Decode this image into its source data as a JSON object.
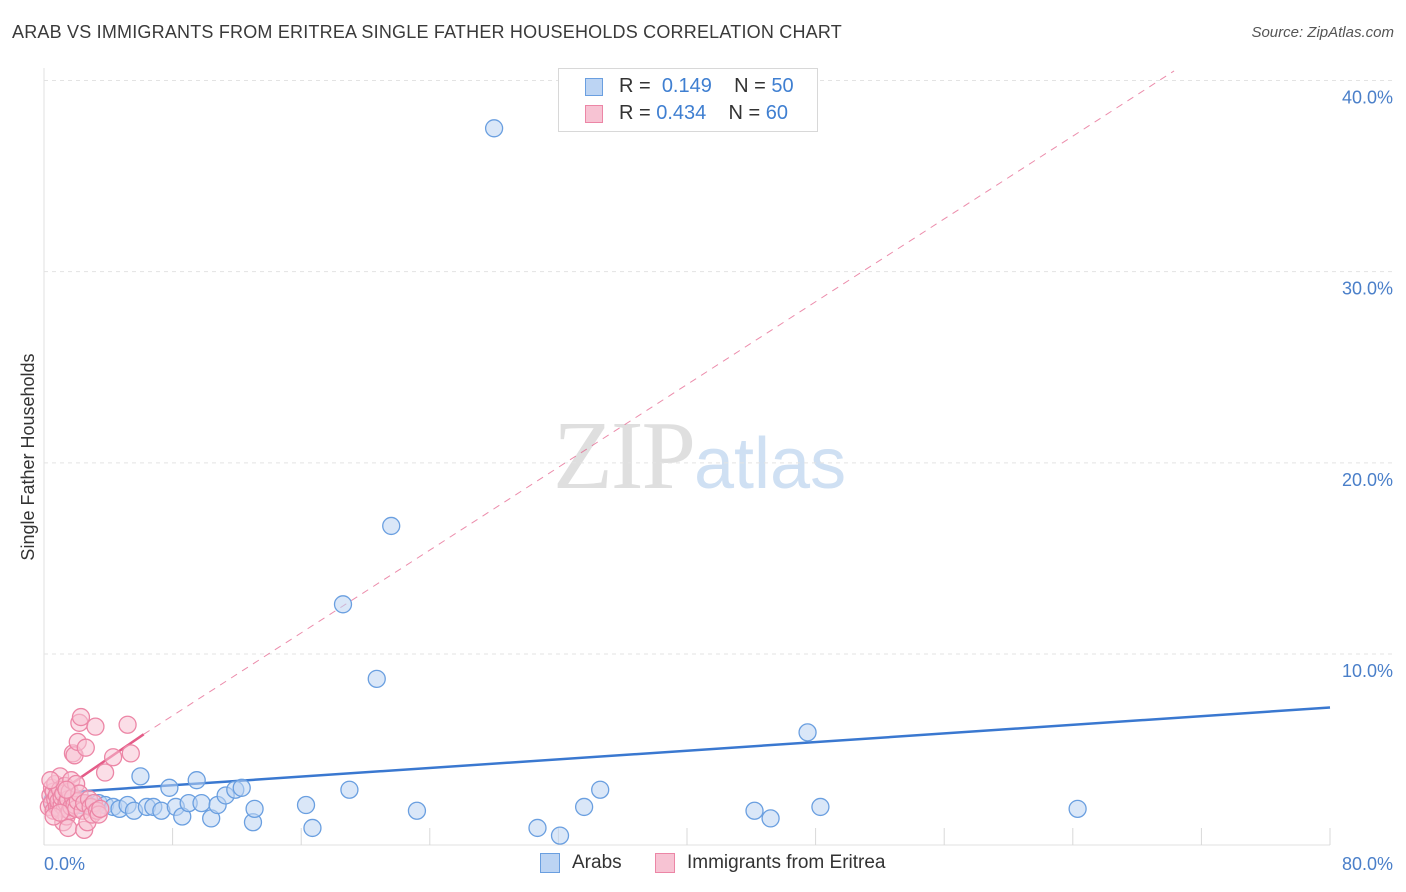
{
  "header": {
    "title": "ARAB VS IMMIGRANTS FROM ERITREA SINGLE FATHER HOUSEHOLDS CORRELATION CHART",
    "source": "Source: ZipAtlas.com"
  },
  "watermark": {
    "zip": "ZIP",
    "atlas": "atlas"
  },
  "legend_top": {
    "rows": [
      {
        "r_label": "R =",
        "r_value": "0.149",
        "n_label": "N =",
        "n_value": "50"
      },
      {
        "r_label": "R =",
        "r_value": "0.434",
        "n_label": "N =",
        "n_value": "60"
      }
    ]
  },
  "legend_bottom": {
    "items": [
      "Arabs",
      "Immigrants from Eritrea"
    ]
  },
  "colors": {
    "arabs_fill": "#bcd4f3",
    "arabs_stroke": "#6a9fe0",
    "arabs_line": "#3a78d0",
    "eritrea_fill": "#f7c3d3",
    "eritrea_stroke": "#ec86a6",
    "eritrea_line": "#e45c88",
    "grid": "#e3e3e3",
    "tick_text": "#4a7fc9"
  },
  "chart_data": {
    "type": "scatter",
    "title": "ARAB VS IMMIGRANTS FROM ERITREA SINGLE FATHER HOUSEHOLDS CORRELATION CHART",
    "xlabel": "",
    "ylabel": "Single Father Households",
    "xlim": [
      0,
      80
    ],
    "ylim": [
      0,
      42
    ],
    "x_tick_labels": [
      {
        "value": 0,
        "label": "0.0%"
      },
      {
        "value": 80,
        "label": "80.0%"
      }
    ],
    "y_ticks": [
      {
        "value": 10,
        "label": "10.0%"
      },
      {
        "value": 20,
        "label": "20.0%"
      },
      {
        "value": 30,
        "label": "30.0%"
      },
      {
        "value": 40,
        "label": "40.0%"
      }
    ],
    "x_grid": [
      0,
      8,
      16,
      24,
      32,
      40,
      48,
      56,
      64,
      72,
      80
    ],
    "series": [
      {
        "name": "Arabs",
        "r": 0.149,
        "n": 50,
        "trend": {
          "x0": 0.3,
          "y0": 2.7,
          "x1": 80,
          "y1": 7.2
        },
        "points": [
          [
            0.5,
            2.3
          ],
          [
            0.8,
            2.1
          ],
          [
            1.0,
            2.4
          ],
          [
            1.3,
            2.2
          ],
          [
            1.6,
            2.0
          ],
          [
            1.9,
            2.3
          ],
          [
            2.2,
            2.1
          ],
          [
            2.6,
            2.2
          ],
          [
            3.0,
            2.0
          ],
          [
            3.4,
            2.2
          ],
          [
            3.8,
            2.1
          ],
          [
            4.3,
            2.0
          ],
          [
            4.7,
            1.9
          ],
          [
            5.2,
            2.1
          ],
          [
            5.6,
            1.8
          ],
          [
            6.0,
            3.6
          ],
          [
            6.4,
            2.0
          ],
          [
            6.8,
            2.0
          ],
          [
            7.3,
            1.8
          ],
          [
            7.8,
            3.0
          ],
          [
            8.2,
            2.0
          ],
          [
            8.6,
            1.5
          ],
          [
            9.0,
            2.2
          ],
          [
            9.5,
            3.4
          ],
          [
            9.8,
            2.2
          ],
          [
            10.4,
            1.4
          ],
          [
            10.8,
            2.1
          ],
          [
            11.3,
            2.6
          ],
          [
            11.9,
            2.9
          ],
          [
            12.3,
            3.0
          ],
          [
            13.0,
            1.2
          ],
          [
            13.1,
            1.9
          ],
          [
            16.3,
            2.1
          ],
          [
            16.7,
            0.9
          ],
          [
            19.0,
            2.9
          ],
          [
            18.6,
            12.6
          ],
          [
            20.7,
            8.7
          ],
          [
            21.6,
            16.7
          ],
          [
            23.2,
            1.8
          ],
          [
            28.0,
            37.5
          ],
          [
            30.7,
            0.9
          ],
          [
            32.1,
            0.5
          ],
          [
            33.6,
            2.0
          ],
          [
            34.6,
            2.9
          ],
          [
            44.2,
            1.8
          ],
          [
            45.2,
            1.4
          ],
          [
            47.5,
            5.9
          ],
          [
            48.3,
            2.0
          ],
          [
            64.3,
            1.9
          ],
          [
            1.2,
            2.6
          ]
        ]
      },
      {
        "name": "Immigrants from Eritrea",
        "r": 0.434,
        "n": 60,
        "trend": {
          "x0": 0.3,
          "y0": 2.4,
          "x1": 6.2,
          "y1": 5.8
        },
        "trend_extension": {
          "x0": 6.2,
          "y0": 5.8,
          "x1": 70.3,
          "y1": 40.5
        },
        "points": [
          [
            0.3,
            2.0
          ],
          [
            0.4,
            2.6
          ],
          [
            0.5,
            3.0
          ],
          [
            0.5,
            2.2
          ],
          [
            0.6,
            1.8
          ],
          [
            0.6,
            2.8
          ],
          [
            0.7,
            2.4
          ],
          [
            0.7,
            3.2
          ],
          [
            0.8,
            2.0
          ],
          [
            0.8,
            2.6
          ],
          [
            0.9,
            1.9
          ],
          [
            0.9,
            2.3
          ],
          [
            1.0,
            3.6
          ],
          [
            1.0,
            2.9
          ],
          [
            1.1,
            2.1
          ],
          [
            1.1,
            2.5
          ],
          [
            1.2,
            1.2
          ],
          [
            1.2,
            2.7
          ],
          [
            1.3,
            1.9
          ],
          [
            1.3,
            3.1
          ],
          [
            1.4,
            2.2
          ],
          [
            1.4,
            1.5
          ],
          [
            1.5,
            2.4
          ],
          [
            1.5,
            0.9
          ],
          [
            1.6,
            2.8
          ],
          [
            1.6,
            1.8
          ],
          [
            1.7,
            3.4
          ],
          [
            1.7,
            2.0
          ],
          [
            1.8,
            2.5
          ],
          [
            1.8,
            4.8
          ],
          [
            1.9,
            2.1
          ],
          [
            1.9,
            4.7
          ],
          [
            2.0,
            1.9
          ],
          [
            2.0,
            3.2
          ],
          [
            2.1,
            2.3
          ],
          [
            2.1,
            5.4
          ],
          [
            2.2,
            2.7
          ],
          [
            2.2,
            6.4
          ],
          [
            2.3,
            6.7
          ],
          [
            2.4,
            1.8
          ],
          [
            2.5,
            2.2
          ],
          [
            2.5,
            0.8
          ],
          [
            2.6,
            5.1
          ],
          [
            2.7,
            1.2
          ],
          [
            2.8,
            2.4
          ],
          [
            2.9,
            2.0
          ],
          [
            3.0,
            1.6
          ],
          [
            3.1,
            2.2
          ],
          [
            3.2,
            6.2
          ],
          [
            3.3,
            1.8
          ],
          [
            3.4,
            1.6
          ],
          [
            3.5,
            1.9
          ],
          [
            3.8,
            3.8
          ],
          [
            4.3,
            4.6
          ],
          [
            5.2,
            6.3
          ],
          [
            5.4,
            4.8
          ],
          [
            0.4,
            3.4
          ],
          [
            0.6,
            1.5
          ],
          [
            1.0,
            1.7
          ],
          [
            1.4,
            2.9
          ]
        ]
      }
    ]
  }
}
